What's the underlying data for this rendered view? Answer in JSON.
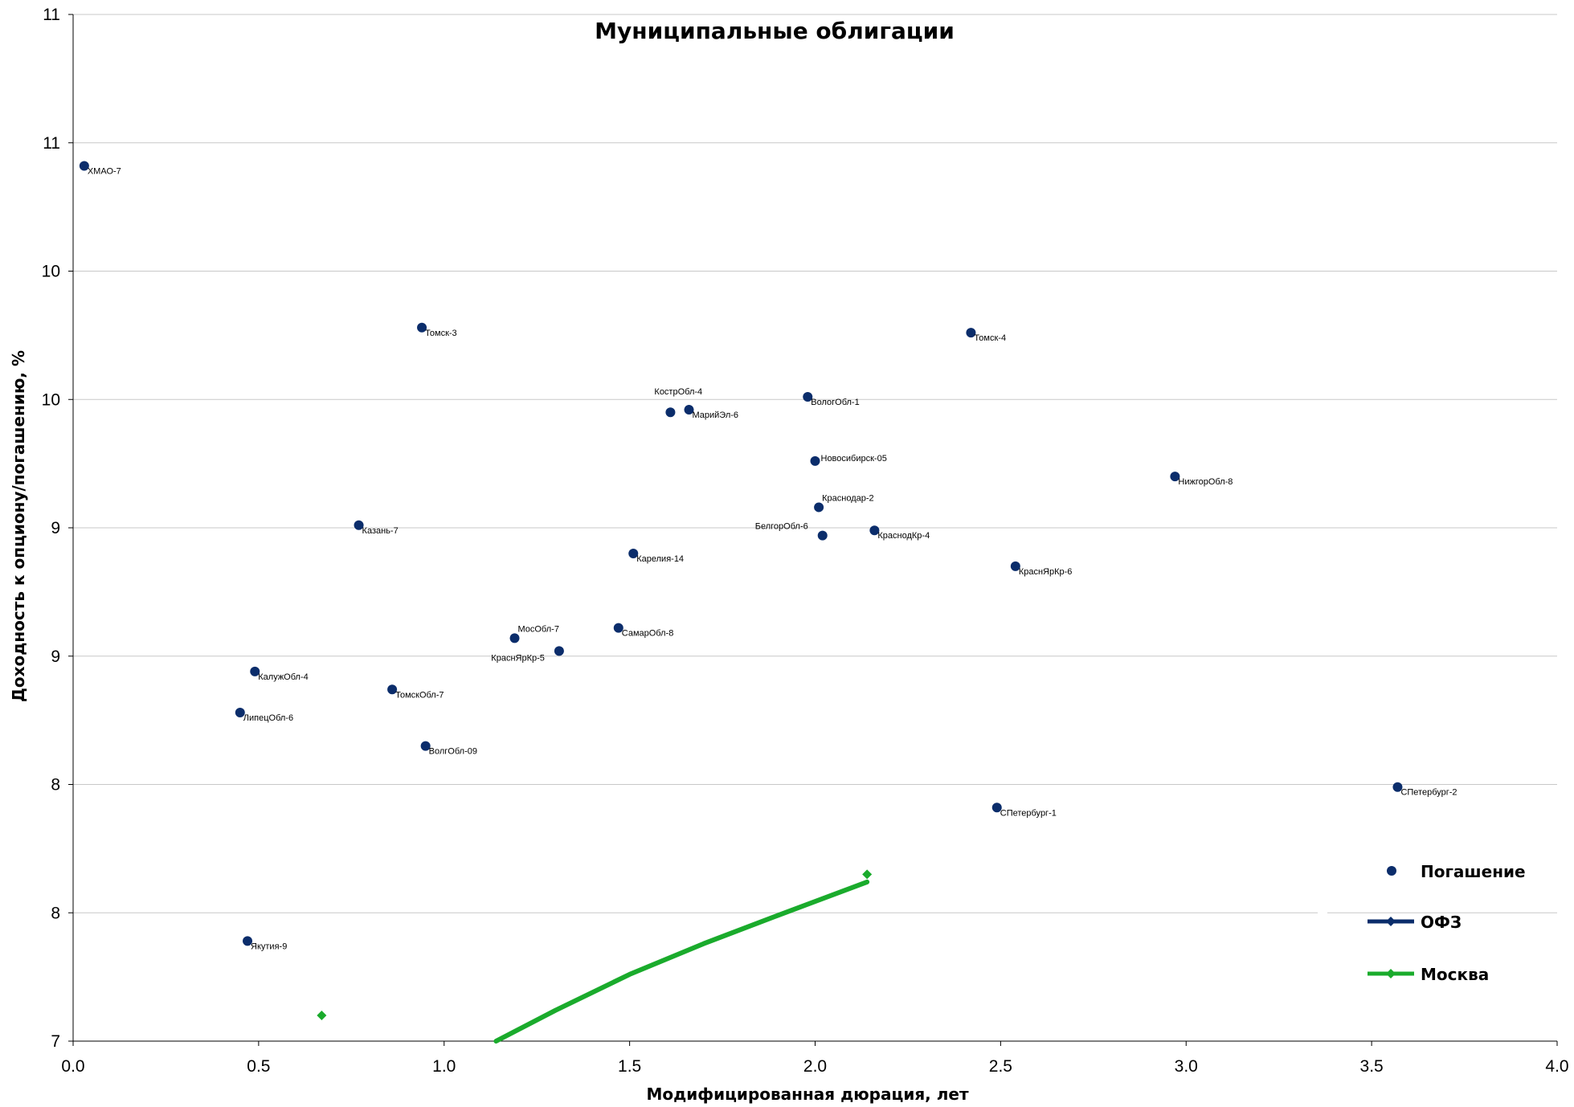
{
  "chart_data": {
    "type": "scatter",
    "title": "Муниципальные облигации",
    "xlabel": "Модифицированная дюрация, лет",
    "ylabel": "Доходность к опциону/погашению, %",
    "xlim": [
      0,
      4
    ],
    "xticks": [
      "0.0",
      "0.5",
      "1.0",
      "1.5",
      "2.0",
      "2.5",
      "3.0",
      "3.5",
      "4.0"
    ],
    "ylim": [
      7,
      11
    ],
    "ytick_labels": [
      "7",
      "8",
      "8",
      "9",
      "9",
      "10",
      "10",
      "11",
      "11"
    ],
    "grid": true,
    "legend_position": "bottom-right",
    "series": [
      {
        "name": "Погашение",
        "color": "#0b2d6b",
        "marker": "circle",
        "points": [
          {
            "label": "ХМАО-7",
            "x": 0.03,
            "y": 10.41
          },
          {
            "label": "Томск-3",
            "x": 0.94,
            "y": 9.78
          },
          {
            "label": "Томск-4",
            "x": 2.42,
            "y": 9.76
          },
          {
            "label": "КострОбл-4",
            "x": 1.61,
            "y": 9.45
          },
          {
            "label": "МарийЭл-6",
            "x": 1.66,
            "y": 9.46
          },
          {
            "label": "ВологОбл-1",
            "x": 1.98,
            "y": 9.51
          },
          {
            "label": "Новосибирск-05",
            "x": 2.0,
            "y": 9.26
          },
          {
            "label": "Краснодар-2",
            "x": 2.01,
            "y": 9.08
          },
          {
            "label": "НижгорОбл-8",
            "x": 2.97,
            "y": 9.2
          },
          {
            "label": "Казань-7",
            "x": 0.77,
            "y": 9.01
          },
          {
            "label": "БелгорОбл-6",
            "x": 2.02,
            "y": 8.97
          },
          {
            "label": "КраснодКр-4",
            "x": 2.16,
            "y": 8.99
          },
          {
            "label": "Карелия-14",
            "x": 1.51,
            "y": 8.9
          },
          {
            "label": "КраснЯрКр-6",
            "x": 2.54,
            "y": 8.85
          },
          {
            "label": "МосОбл-7",
            "x": 1.19,
            "y": 8.57
          },
          {
            "label": "СамарОбл-8",
            "x": 1.47,
            "y": 8.61
          },
          {
            "label": "КраснЯрКр-5",
            "x": 1.31,
            "y": 8.52
          },
          {
            "label": "КалужОбл-4",
            "x": 0.49,
            "y": 8.44
          },
          {
            "label": "ТомскОбл-7",
            "x": 0.86,
            "y": 8.37
          },
          {
            "label": "ЛипецОбл-6",
            "x": 0.45,
            "y": 8.28
          },
          {
            "label": "ВолгОбл-09",
            "x": 0.95,
            "y": 8.15
          },
          {
            "label": "СПетербург-1",
            "x": 2.49,
            "y": 7.91
          },
          {
            "label": "СПетербург-2",
            "x": 3.57,
            "y": 7.99
          },
          {
            "label": "Якутия-9",
            "x": 0.47,
            "y": 7.39
          }
        ]
      },
      {
        "name": "ОФЗ",
        "color": "#0b2d6b",
        "marker": "diamond",
        "x": [],
        "y": []
      },
      {
        "name": "Москва",
        "color": "#1aab2c",
        "marker": "diamond",
        "points": [
          {
            "x": 0.67,
            "y": 7.1
          },
          {
            "x": 2.14,
            "y": 7.65
          }
        ],
        "curve": {
          "x": [
            1.14,
            1.3,
            1.5,
            1.7,
            1.9,
            2.14
          ],
          "y": [
            7.0,
            7.12,
            7.26,
            7.38,
            7.49,
            7.62
          ]
        }
      }
    ]
  }
}
